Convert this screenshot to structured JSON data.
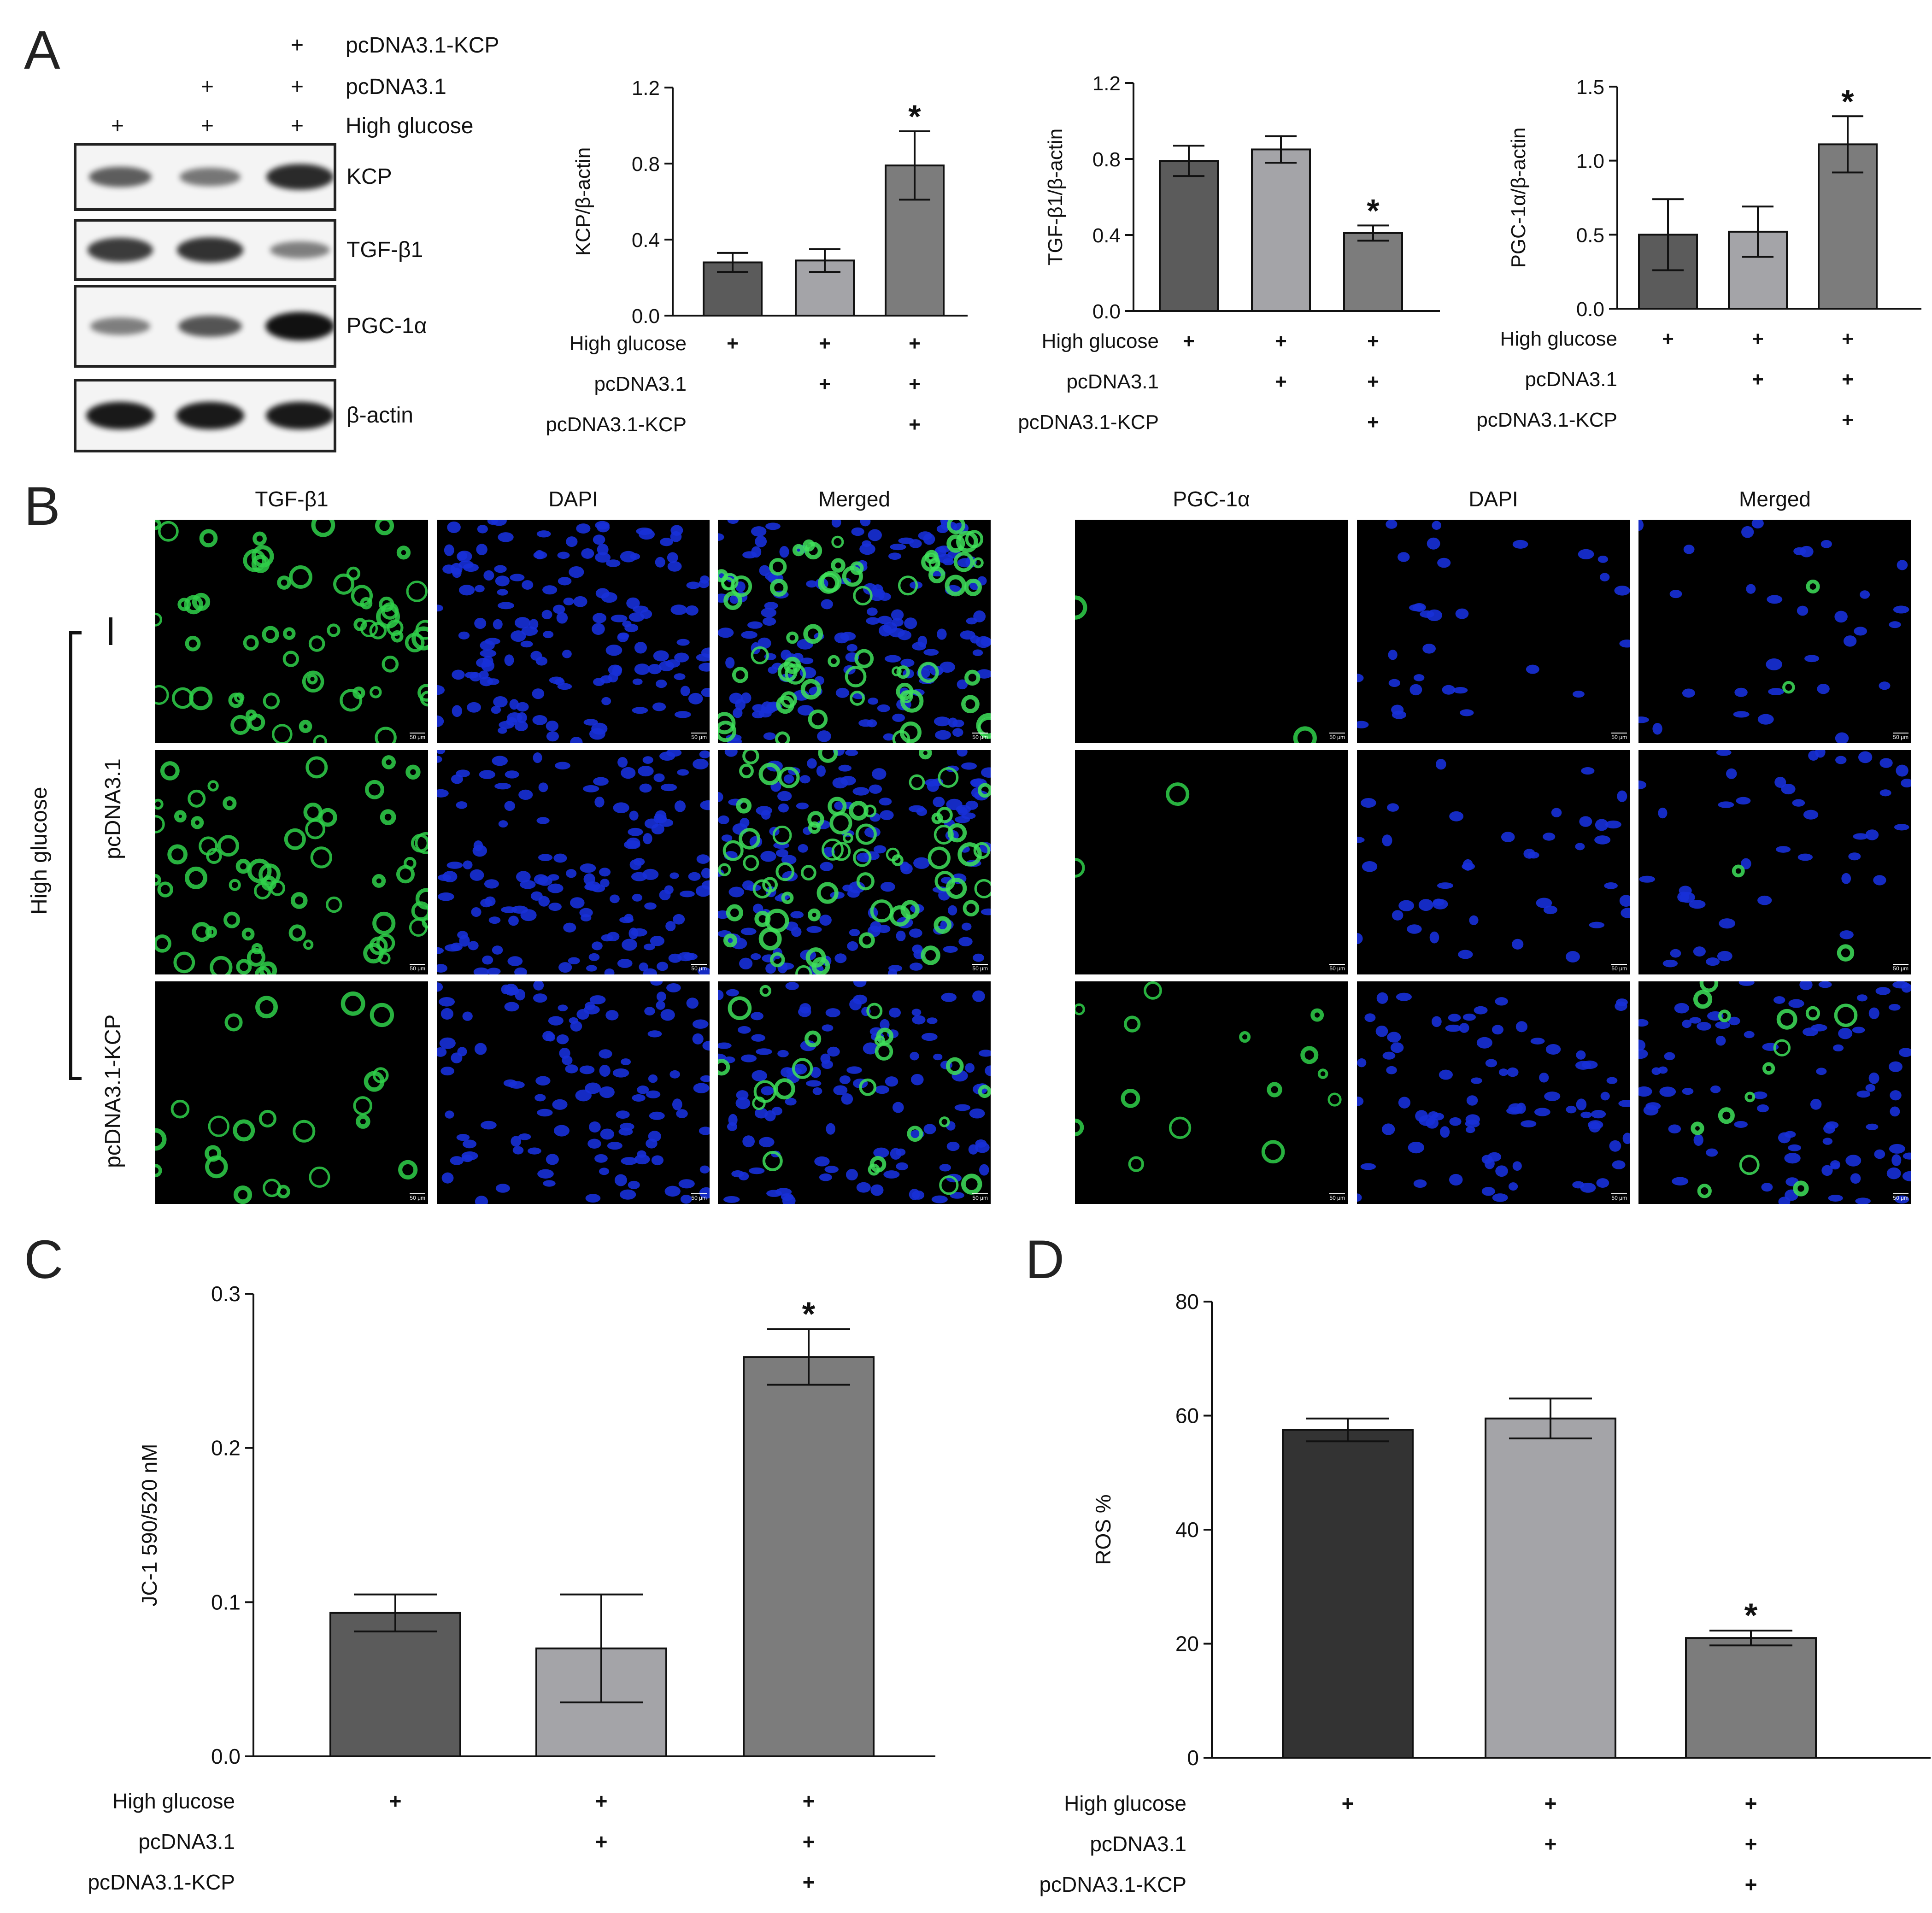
{
  "panels": {
    "a": "A",
    "b": "B",
    "c": "C",
    "d": "D"
  },
  "western_blot": {
    "treatment_rows": [
      {
        "label": "pcDNA3.1-KCP",
        "marks": [
          "",
          "",
          "+"
        ]
      },
      {
        "label": "pcDNA3.1",
        "marks": [
          "",
          "+",
          "+"
        ]
      },
      {
        "label": "High glucose",
        "marks": [
          "+",
          "+",
          "+"
        ]
      }
    ],
    "blots": [
      {
        "label": "KCP",
        "intensity": [
          0.55,
          0.4,
          0.85
        ]
      },
      {
        "label": "TGF-β1",
        "intensity": [
          0.75,
          0.8,
          0.35
        ]
      },
      {
        "label": "PGC-1α",
        "intensity": [
          0.35,
          0.6,
          1.0
        ]
      },
      {
        "label": "β-actin",
        "intensity": [
          0.95,
          0.95,
          0.95
        ]
      }
    ]
  },
  "treatment_labels": {
    "hg": "High glucose",
    "pc": "pcDNA3.1",
    "kcp": "pcDNA3.1-KCP",
    "plus": "+"
  },
  "chart_data": [
    {
      "id": "kcp",
      "type": "bar",
      "ylabel": "KCP/β-actin",
      "ylim": [
        0,
        1.2
      ],
      "yticks": [
        "0.0",
        "0.4",
        "0.8",
        "1.2"
      ],
      "values": [
        0.28,
        0.29,
        0.79
      ],
      "errors": [
        0.05,
        0.06,
        0.18
      ],
      "significant": [
        false,
        false,
        true
      ],
      "colors": [
        "#5b5b5b",
        "#a4a4a8",
        "#7c7c7c"
      ]
    },
    {
      "id": "tgf",
      "type": "bar",
      "ylabel": "TGF-β1/β-actin",
      "ylim": [
        0,
        1.2
      ],
      "yticks": [
        "0.0",
        "0.4",
        "0.8",
        "1.2"
      ],
      "values": [
        0.79,
        0.85,
        0.41
      ],
      "errors": [
        0.08,
        0.07,
        0.04
      ],
      "significant": [
        false,
        false,
        true
      ],
      "colors": [
        "#5b5b5b",
        "#a4a4a8",
        "#7c7c7c"
      ]
    },
    {
      "id": "pgc",
      "type": "bar",
      "ylabel": "PGC-1α/β-actin",
      "ylim": [
        0,
        1.5
      ],
      "yticks": [
        "0.0",
        "0.5",
        "1.0",
        "1.5"
      ],
      "values": [
        0.5,
        0.52,
        1.11
      ],
      "errors": [
        0.24,
        0.17,
        0.19
      ],
      "significant": [
        false,
        false,
        true
      ],
      "colors": [
        "#5b5b5b",
        "#a4a4a8",
        "#7c7c7c"
      ]
    },
    {
      "id": "jc1",
      "type": "bar",
      "ylabel": "JC-1 590/520 nM",
      "ylim": [
        0,
        0.3
      ],
      "yticks": [
        "0.0",
        "0.1",
        "0.2",
        "0.3"
      ],
      "values": [
        0.093,
        0.07,
        0.259
      ],
      "errors": [
        0.012,
        0.035,
        0.018
      ],
      "significant": [
        false,
        false,
        true
      ],
      "colors": [
        "#5b5b5b",
        "#a4a4a8",
        "#7c7c7c"
      ]
    },
    {
      "id": "ros",
      "type": "bar",
      "ylabel": "ROS %",
      "ylim": [
        0,
        80
      ],
      "yticks": [
        "0",
        "20",
        "40",
        "60",
        "80"
      ],
      "values": [
        57.5,
        59.5,
        21.0
      ],
      "errors": [
        2.0,
        3.5,
        1.3
      ],
      "significant": [
        false,
        false,
        true
      ],
      "colors": [
        "#333333",
        "#a4a4a8",
        "#7c7c7c"
      ]
    }
  ],
  "significance_mark": "*",
  "immunofluorescence": {
    "left_columns": [
      "TGF-β1",
      "DAPI",
      "Merged"
    ],
    "right_columns": [
      "PGC-1α",
      "DAPI",
      "Merged"
    ],
    "group_label": "High glucose",
    "row_labels": [
      "pcDNA3.1",
      "pcDNA3.1-KCP"
    ],
    "scale_bar": "50 μm"
  }
}
